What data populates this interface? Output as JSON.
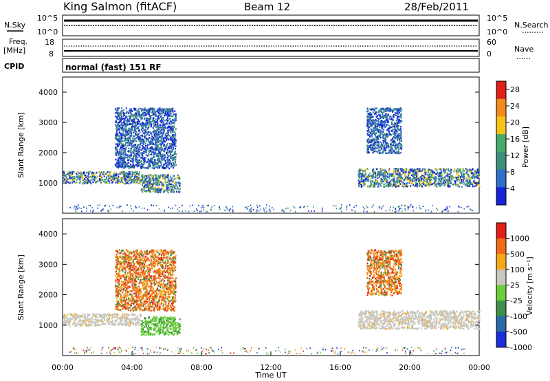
{
  "header": {
    "station": "King Salmon (fitACF)",
    "beam": "Beam 12",
    "date": "28/Feb/2011"
  },
  "summary_panels": {
    "nsky_label": "N.Sky",
    "nsky_ticks": [
      "10^5",
      "10^0"
    ],
    "nsearch_label": "N.Search",
    "nsearch_ticks": [
      "10^5",
      "10^0"
    ],
    "freq_label": "Freq.",
    "freq_unit": "[MHz]",
    "freq_ticks": [
      "18",
      "8"
    ],
    "nave_label": "Nave",
    "nave_ticks": [
      "60",
      "0"
    ],
    "cpid_label": "CPID",
    "cpid_text": "normal (fast) 151 RF"
  },
  "chart_data": [
    {
      "type": "heatmap",
      "name": "power",
      "ylabel": "Slant Range [km]",
      "ylim": [
        0,
        4500
      ],
      "yticks": [
        "1000",
        "2000",
        "3000",
        "4000"
      ],
      "xlim": [
        "00:00",
        "24:00"
      ],
      "colorbar": {
        "label": "Power [dB]",
        "ticks": [
          "4",
          "8",
          "12",
          "16",
          "20",
          "24",
          "28"
        ],
        "range": [
          0,
          30
        ],
        "colors": [
          "#1a22d8",
          "#2f6fc8",
          "#3e8e7a",
          "#4aa86a",
          "#f5c21a",
          "#f28a1c",
          "#e0201a"
        ]
      },
      "features": [
        {
          "band": "ground scatter",
          "start": "00:00",
          "end": "04:30",
          "range_km": [
            1000,
            1400
          ]
        },
        {
          "band": "ionospheric",
          "start": "03:00",
          "end": "06:30",
          "range_km": [
            1500,
            3500
          ]
        },
        {
          "band": "ground scatter",
          "start": "04:30",
          "end": "06:45",
          "range_km": [
            700,
            1300
          ]
        },
        {
          "band": "ionospheric",
          "start": "17:30",
          "end": "19:30",
          "range_km": [
            2000,
            3500
          ]
        },
        {
          "band": "ground scatter",
          "start": "17:00",
          "end": "24:00",
          "range_km": [
            900,
            1500
          ]
        }
      ]
    },
    {
      "type": "heatmap",
      "name": "velocity",
      "ylabel": "Slant Range [km]",
      "ylim": [
        0,
        4500
      ],
      "yticks": [
        "1000",
        "2000",
        "3000",
        "4000"
      ],
      "xlim": [
        "00:00",
        "24:00"
      ],
      "xlabel": "Time UT",
      "xticks": [
        "00:00",
        "04:00",
        "08:00",
        "12:00",
        "16:00",
        "20:00",
        "00:00"
      ],
      "colorbar": {
        "label": "Velocity [m s⁻¹]",
        "ticks": [
          "1000",
          "500",
          "100",
          "25",
          "-25",
          "-100",
          "-500",
          "-1000"
        ],
        "colors": [
          "#1a2fd8",
          "#2a6aa8",
          "#3f8f4a",
          "#6acd3a",
          "#c8c8c0",
          "#f5a81a",
          "#f06a1a",
          "#e0201a"
        ]
      }
    }
  ]
}
